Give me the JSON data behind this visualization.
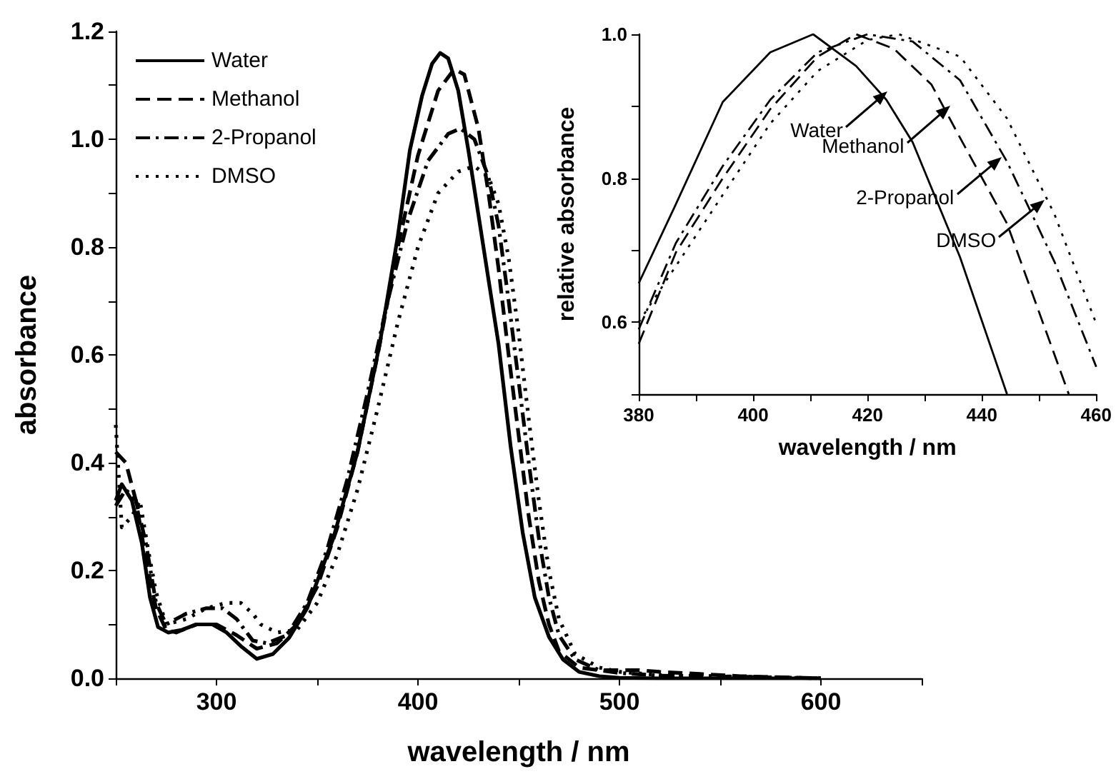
{
  "chart_data": [
    {
      "type": "line",
      "xlabel": "wavelength / nm",
      "ylabel": "absorbance",
      "legend": "top left",
      "grid": false,
      "marker": "none",
      "xlim": [
        250,
        650
      ],
      "xticks": [
        {
          "value": 250,
          "label": null
        },
        300,
        {
          "value": 350,
          "label": null
        },
        400,
        {
          "value": 450,
          "label": null
        },
        500,
        {
          "value": 550,
          "label": null
        },
        600,
        {
          "value": 650,
          "label": null
        }
      ],
      "ylim": [
        0,
        1.2
      ],
      "yticks": [
        {
          "value": 0,
          "label": "0.0"
        },
        {
          "value": 0.1,
          "label": null
        },
        0.2,
        {
          "value": 0.3,
          "label": null
        },
        0.4,
        {
          "value": 0.5,
          "label": null
        },
        0.6,
        {
          "value": 0.7,
          "label": null
        },
        0.8,
        {
          "value": 0.9,
          "label": null
        },
        {
          "value": 1,
          "label": "1.0"
        },
        {
          "value": 1.1,
          "label": null
        },
        1.2
      ],
      "series": [
        {
          "name": "Water",
          "color": "#000000",
          "line_style": "solid",
          "x": [
            250,
            253,
            258,
            263,
            267,
            271,
            276,
            283,
            290,
            298,
            305,
            312,
            320,
            328,
            336,
            345,
            358,
            370,
            381,
            390,
            396,
            402,
            407,
            411,
            415,
            420,
            425,
            430,
            435,
            440,
            446,
            452,
            458,
            465,
            472,
            480,
            490,
            500,
            520,
            600
          ],
          "values": [
            0.33,
            0.36,
            0.33,
            0.25,
            0.15,
            0.095,
            0.085,
            0.09,
            0.1,
            0.1,
            0.085,
            0.06,
            0.036,
            0.045,
            0.075,
            0.13,
            0.26,
            0.42,
            0.62,
            0.82,
            0.98,
            1.08,
            1.14,
            1.16,
            1.15,
            1.09,
            0.98,
            0.86,
            0.74,
            0.62,
            0.43,
            0.27,
            0.15,
            0.077,
            0.035,
            0.012,
            0.004,
            0.001,
            0,
            0
          ]
        },
        {
          "name": "Methanol",
          "color": "#000000",
          "line_style": "dashed",
          "x": [
            250,
            255,
            260,
            265,
            270,
            275,
            280,
            290,
            300,
            310,
            320,
            330,
            340,
            350,
            360,
            370,
            380,
            390,
            400,
            410,
            418,
            423,
            430,
            435,
            440,
            445,
            450,
            455,
            460,
            465,
            470,
            480,
            490,
            500,
            510,
            520,
            540,
            560,
            600
          ],
          "values": [
            0.42,
            0.4,
            0.33,
            0.22,
            0.13,
            0.09,
            0.085,
            0.1,
            0.1,
            0.08,
            0.055,
            0.065,
            0.1,
            0.17,
            0.28,
            0.42,
            0.6,
            0.8,
            0.97,
            1.09,
            1.13,
            1.12,
            1.02,
            0.9,
            0.76,
            0.6,
            0.45,
            0.3,
            0.18,
            0.1,
            0.05,
            0.02,
            0.015,
            0.015,
            0.015,
            0.012,
            0.008,
            0.004,
            0
          ]
        },
        {
          "name": "2-Propanol",
          "color": "#000000",
          "line_style": "dashdot",
          "x": [
            250,
            255,
            260,
            265,
            270,
            275,
            285,
            295,
            303,
            310,
            318,
            325,
            335,
            345,
            355,
            365,
            375,
            385,
            395,
            405,
            415,
            421,
            428,
            435,
            440,
            445,
            450,
            455,
            460,
            465,
            470,
            478,
            490,
            500,
            520,
            560,
            600
          ],
          "values": [
            0.32,
            0.35,
            0.33,
            0.25,
            0.14,
            0.1,
            0.12,
            0.13,
            0.13,
            0.11,
            0.07,
            0.065,
            0.08,
            0.14,
            0.24,
            0.37,
            0.53,
            0.7,
            0.85,
            0.96,
            1.01,
            1.02,
            1,
            0.93,
            0.84,
            0.7,
            0.55,
            0.4,
            0.26,
            0.15,
            0.08,
            0.035,
            0.015,
            0.01,
            0.005,
            0.003,
            0
          ]
        },
        {
          "name": "DMSO",
          "color": "#000000",
          "line_style": "dotted",
          "x": [
            250,
            253,
            258,
            262,
            266,
            270,
            275,
            285,
            295,
            305,
            312,
            318,
            322,
            330,
            340,
            350,
            360,
            370,
            380,
            390,
            400,
            410,
            420,
            428,
            435,
            440,
            445,
            450,
            455,
            460,
            465,
            470,
            478,
            490,
            500,
            520,
            560,
            600
          ],
          "values": [
            0.47,
            0.28,
            0.3,
            0.33,
            0.24,
            0.16,
            0.1,
            0.11,
            0.13,
            0.14,
            0.14,
            0.12,
            0.1,
            0.085,
            0.09,
            0.14,
            0.23,
            0.35,
            0.5,
            0.66,
            0.8,
            0.9,
            0.94,
            0.95,
            0.93,
            0.88,
            0.78,
            0.64,
            0.48,
            0.33,
            0.2,
            0.11,
            0.045,
            0.02,
            0.012,
            0.006,
            0.003,
            0
          ]
        }
      ]
    },
    {
      "type": "line",
      "xlabel": "wavelength / nm",
      "ylabel": "relative absorbance",
      "legend": false,
      "grid": false,
      "marker": "none",
      "xlim": [
        380,
        460
      ],
      "xticks": [
        380,
        {
          "value": 390,
          "label": null
        },
        400,
        {
          "value": 410,
          "label": null
        },
        420,
        {
          "value": 430,
          "label": null
        },
        440,
        {
          "value": 450,
          "label": null
        },
        460
      ],
      "ylim": [
        0.5,
        1
      ],
      "yticks": [
        {
          "value": 0.5,
          "label": null
        },
        0.6,
        {
          "value": 0.7,
          "label": null
        },
        0.8,
        {
          "value": 0.9,
          "label": null
        },
        {
          "value": 1,
          "label": "1.0"
        }
      ],
      "annotations": [
        {
          "text": "Water",
          "x": 423.5,
          "y": 0.92
        },
        {
          "text": "Methanol",
          "x": 434.5,
          "y": 0.9
        },
        {
          "text": "2-Propanol",
          "x": 443.5,
          "y": 0.83
        },
        {
          "text": "DMSO",
          "x": 451,
          "y": 0.77
        }
      ],
      "series": [
        {
          "color": "#000000",
          "line_style": "solid",
          "x": [
            380,
            386.5,
            394.7,
            403,
            410.5,
            418,
            423.3,
            427.9,
            436.2,
            444.4
          ],
          "values": [
            0.654,
            0.764,
            0.906,
            0.975,
            1,
            0.956,
            0.909,
            0.85,
            0.69,
            0.5
          ]
        },
        {
          "color": "#000000",
          "line_style": "dashed",
          "x": [
            380,
            386.5,
            394.7,
            403,
            411.3,
            418,
            424.6,
            431.2,
            436.2,
            444.4,
            455.2
          ],
          "values": [
            0.57,
            0.697,
            0.8,
            0.896,
            0.969,
            1,
            0.98,
            0.93,
            0.856,
            0.737,
            0.5
          ]
        },
        {
          "color": "#000000",
          "line_style": "dashdot",
          "x": [
            380,
            386.5,
            394.7,
            403,
            411.3,
            420,
            427.9,
            436.2,
            444.4,
            452.7,
            460
          ],
          "values": [
            0.59,
            0.71,
            0.817,
            0.909,
            0.975,
            1,
            0.99,
            0.936,
            0.823,
            0.684,
            0.538
          ]
        },
        {
          "color": "#000000",
          "line_style": "dotted",
          "x": [
            380,
            386.5,
            394.7,
            403,
            411.3,
            420,
            425.5,
            436.2,
            444.4,
            452.7,
            460
          ],
          "values": [
            0.6,
            0.678,
            0.777,
            0.876,
            0.949,
            0.992,
            1,
            0.969,
            0.883,
            0.75,
            0.598
          ]
        }
      ]
    }
  ]
}
